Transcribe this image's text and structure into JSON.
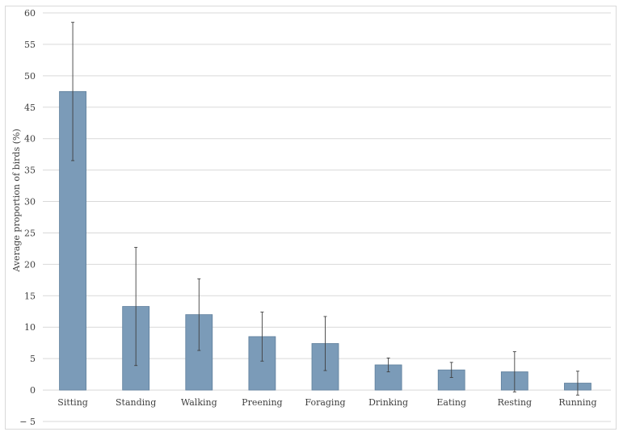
{
  "chart_data": {
    "type": "bar",
    "title": "",
    "xlabel": "",
    "ylabel": "Average proportion of birds (%)",
    "ylim": [
      -5,
      60
    ],
    "yticks": [
      -5,
      0,
      5,
      10,
      15,
      20,
      25,
      30,
      35,
      40,
      45,
      50,
      55,
      60
    ],
    "ytick_labels": [
      "− 5",
      "0",
      "5",
      "10",
      "15",
      "20",
      "25",
      "30",
      "35",
      "40",
      "45",
      "50",
      "55",
      "60"
    ],
    "grid": true,
    "legend": "none",
    "categories": [
      "Sitting",
      "Standing",
      "Walking",
      "Preening",
      "Foraging",
      "Drinking",
      "Eating",
      "Resting",
      "Running"
    ],
    "values": [
      47.5,
      13.3,
      12.0,
      8.5,
      7.4,
      4.0,
      3.2,
      2.9,
      1.1
    ],
    "error": [
      11.0,
      9.4,
      5.7,
      3.9,
      4.3,
      1.1,
      1.2,
      3.2,
      1.9
    ],
    "colors": {
      "bar": "#7b9bb8",
      "bar_stroke": "#5f7f9c",
      "grid": "#d9d9d9",
      "error": "#404040"
    }
  }
}
